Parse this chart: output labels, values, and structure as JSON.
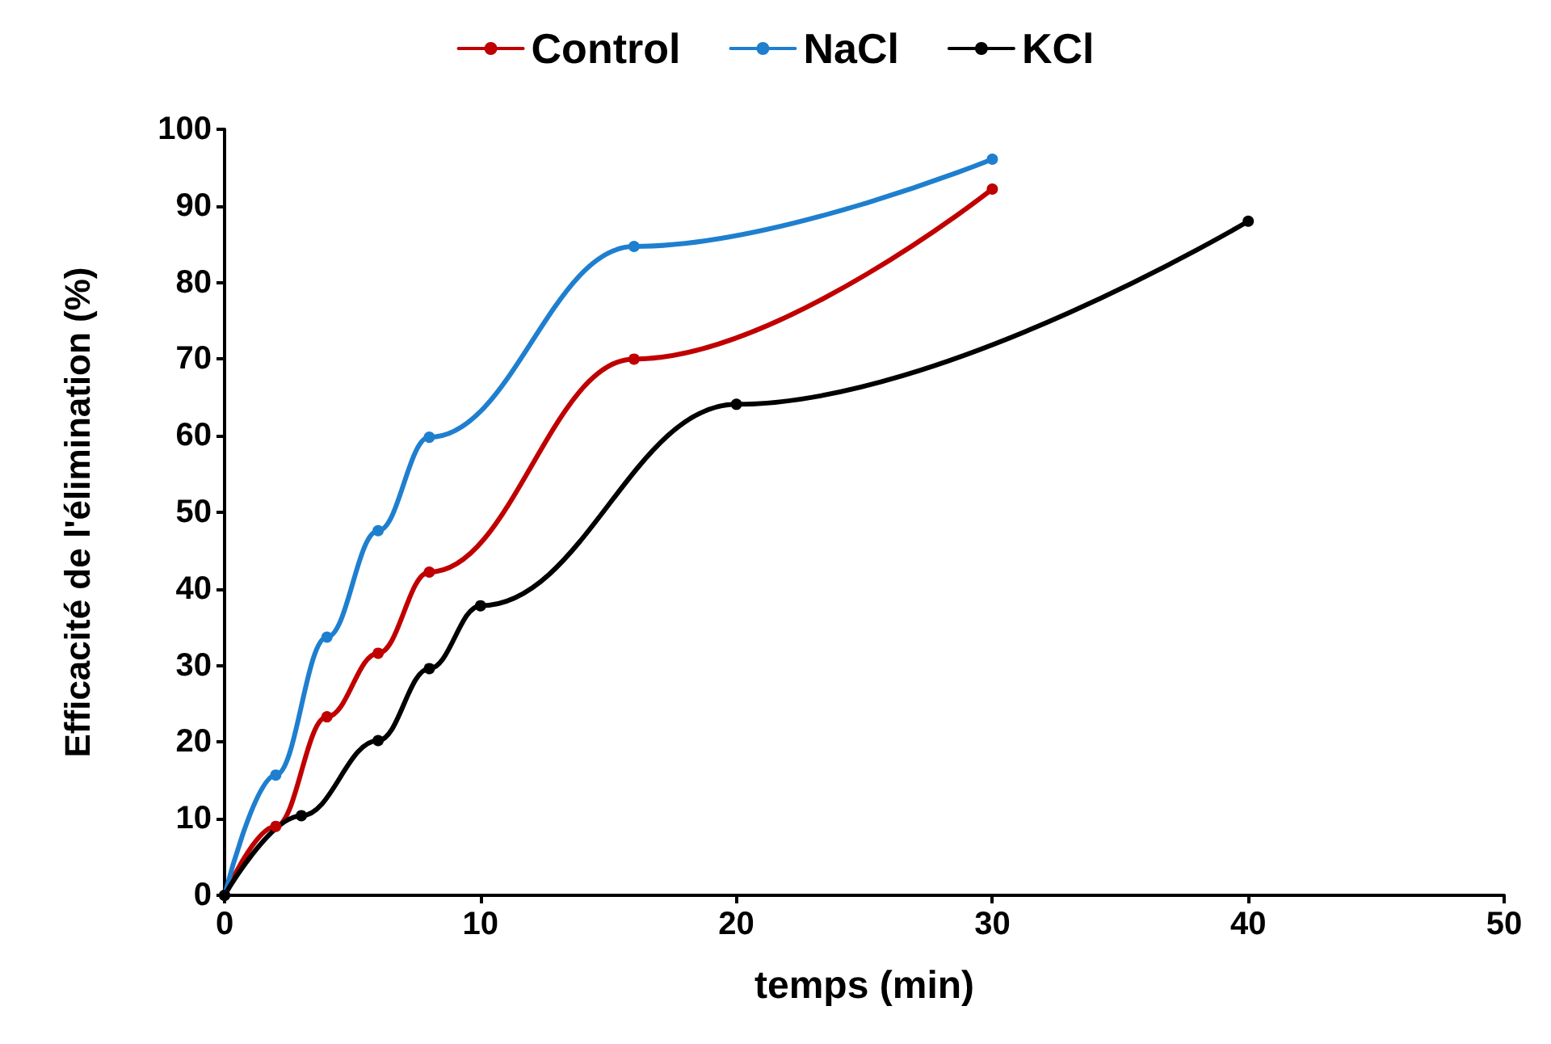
{
  "chart_data": {
    "type": "line",
    "xlabel": "temps (min)",
    "ylabel": "Efficacité de l'élimination (%)",
    "xlim": [
      0,
      50
    ],
    "xticks": [
      0,
      10,
      20,
      30,
      40,
      50
    ],
    "ylim": [
      0,
      100
    ],
    "yticks": [
      0,
      10,
      20,
      30,
      40,
      50,
      60,
      70,
      80,
      90,
      100
    ],
    "grid": false,
    "legend": "top",
    "marker": "circle",
    "line_style": "solid",
    "series": [
      {
        "name": "Control",
        "color": "#c00000",
        "x": [
          0,
          2,
          4,
          6,
          8,
          16,
          30
        ],
        "values": [
          0,
          9,
          23.3,
          31.6,
          42.2,
          70,
          92.2
        ]
      },
      {
        "name": "NaCl",
        "color": "#1f7fcf",
        "x": [
          0,
          2,
          4,
          6,
          8,
          16,
          30
        ],
        "values": [
          0,
          15.7,
          33.7,
          47.6,
          59.8,
          84.7,
          96.1
        ]
      },
      {
        "name": "KCl",
        "color": "#000000",
        "x": [
          0,
          3,
          6,
          8,
          10,
          20,
          40
        ],
        "values": [
          0,
          10.4,
          20.2,
          29.6,
          37.8,
          64.1,
          88
        ]
      }
    ]
  }
}
